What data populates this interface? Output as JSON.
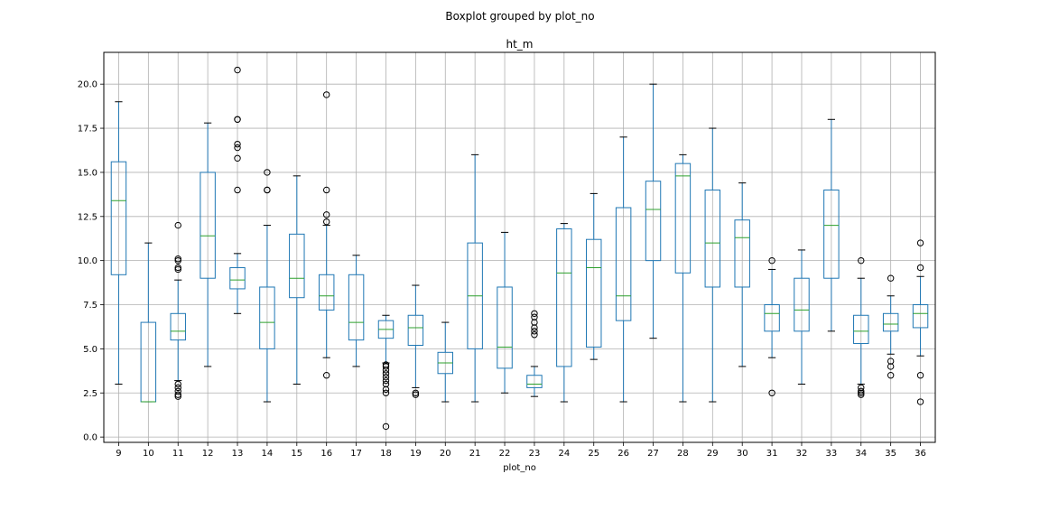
{
  "suptitle": "Boxplot grouped by plot_no",
  "chart_data": {
    "type": "boxplot",
    "title": "ht_m",
    "xlabel": "plot_no",
    "ylabel": "",
    "ylim": [
      -0.3,
      21.8
    ],
    "yticks": [
      0.0,
      2.5,
      5.0,
      7.5,
      10.0,
      12.5,
      15.0,
      17.5,
      20.0
    ],
    "ytick_labels": [
      "0.0",
      "2.5",
      "5.0",
      "7.5",
      "10.0",
      "12.5",
      "15.0",
      "17.5",
      "20.0"
    ],
    "grid": true,
    "colors": {
      "box": "#1f77b4",
      "median": "#2ca02c",
      "whisker": "#1f77b4",
      "cap": "#000000",
      "flier": "#000000",
      "grid": "#b0b0b0"
    },
    "categories": [
      "9",
      "10",
      "11",
      "12",
      "13",
      "14",
      "15",
      "16",
      "17",
      "18",
      "19",
      "20",
      "21",
      "22",
      "23",
      "24",
      "25",
      "26",
      "27",
      "28",
      "29",
      "30",
      "31",
      "32",
      "33",
      "34",
      "35",
      "36"
    ],
    "boxes": [
      {
        "q1": 9.2,
        "median": 13.4,
        "q3": 15.6,
        "whislo": 3.0,
        "whishi": 19.0,
        "fliers": []
      },
      {
        "q1": 2.0,
        "median": 2.0,
        "q3": 6.5,
        "whislo": 2.0,
        "whishi": 11.0,
        "fliers": []
      },
      {
        "q1": 5.5,
        "median": 6.0,
        "q3": 7.0,
        "whislo": 3.2,
        "whishi": 8.9,
        "fliers": [
          3.0,
          2.8,
          2.6,
          2.4,
          2.3,
          9.5,
          9.6,
          10.0,
          10.1,
          12.0
        ]
      },
      {
        "q1": 9.0,
        "median": 11.4,
        "q3": 15.0,
        "whislo": 4.0,
        "whishi": 17.8,
        "fliers": []
      },
      {
        "q1": 8.4,
        "median": 8.9,
        "q3": 9.6,
        "whislo": 7.0,
        "whishi": 10.4,
        "fliers": [
          14.0,
          15.8,
          16.4,
          16.6,
          18.0,
          18.0,
          20.8
        ]
      },
      {
        "q1": 5.0,
        "median": 6.5,
        "q3": 8.5,
        "whislo": 2.0,
        "whishi": 12.0,
        "fliers": [
          14.0,
          14.0,
          15.0
        ]
      },
      {
        "q1": 7.9,
        "median": 9.0,
        "q3": 11.5,
        "whislo": 3.0,
        "whishi": 14.8,
        "fliers": []
      },
      {
        "q1": 7.2,
        "median": 8.0,
        "q3": 9.2,
        "whislo": 4.5,
        "whishi": 12.0,
        "fliers": [
          3.5,
          12.2,
          12.6,
          14.0,
          19.4
        ]
      },
      {
        "q1": 5.5,
        "median": 6.5,
        "q3": 9.2,
        "whislo": 4.0,
        "whishi": 10.3,
        "fliers": []
      },
      {
        "q1": 5.6,
        "median": 6.1,
        "q3": 6.6,
        "whislo": 4.2,
        "whishi": 6.9,
        "fliers": [
          0.6,
          2.5,
          2.7,
          3.0,
          3.2,
          3.4,
          3.6,
          3.8,
          4.0,
          4.1
        ]
      },
      {
        "q1": 5.2,
        "median": 6.2,
        "q3": 6.9,
        "whislo": 2.8,
        "whishi": 8.6,
        "fliers": [
          2.4,
          2.5
        ]
      },
      {
        "q1": 3.6,
        "median": 4.2,
        "q3": 4.8,
        "whislo": 2.0,
        "whishi": 6.5,
        "fliers": []
      },
      {
        "q1": 5.0,
        "median": 8.0,
        "q3": 11.0,
        "whislo": 2.0,
        "whishi": 16.0,
        "fliers": []
      },
      {
        "q1": 3.9,
        "median": 5.1,
        "q3": 8.5,
        "whislo": 2.5,
        "whishi": 11.6,
        "fliers": []
      },
      {
        "q1": 2.8,
        "median": 3.0,
        "q3": 3.5,
        "whislo": 2.3,
        "whishi": 4.0,
        "fliers": [
          5.8,
          6.0,
          6.2,
          6.5,
          6.8,
          7.0
        ]
      },
      {
        "q1": 4.0,
        "median": 9.3,
        "q3": 11.8,
        "whislo": 2.0,
        "whishi": 12.1,
        "fliers": []
      },
      {
        "q1": 5.1,
        "median": 9.6,
        "q3": 11.2,
        "whislo": 4.4,
        "whishi": 13.8,
        "fliers": []
      },
      {
        "q1": 6.6,
        "median": 8.0,
        "q3": 13.0,
        "whislo": 2.0,
        "whishi": 17.0,
        "fliers": []
      },
      {
        "q1": 10.0,
        "median": 12.9,
        "q3": 14.5,
        "whislo": 5.6,
        "whishi": 20.0,
        "fliers": []
      },
      {
        "q1": 9.3,
        "median": 14.8,
        "q3": 15.5,
        "whislo": 2.0,
        "whishi": 16.0,
        "fliers": []
      },
      {
        "q1": 8.5,
        "median": 11.0,
        "q3": 14.0,
        "whislo": 2.0,
        "whishi": 17.5,
        "fliers": []
      },
      {
        "q1": 8.5,
        "median": 11.3,
        "q3": 12.3,
        "whislo": 4.0,
        "whishi": 14.4,
        "fliers": []
      },
      {
        "q1": 6.0,
        "median": 7.0,
        "q3": 7.5,
        "whislo": 4.5,
        "whishi": 9.5,
        "fliers": [
          2.5,
          10.0
        ]
      },
      {
        "q1": 6.0,
        "median": 7.2,
        "q3": 9.0,
        "whislo": 3.0,
        "whishi": 10.6,
        "fliers": []
      },
      {
        "q1": 9.0,
        "median": 12.0,
        "q3": 14.0,
        "whislo": 6.0,
        "whishi": 18.0,
        "fliers": []
      },
      {
        "q1": 5.3,
        "median": 6.0,
        "q3": 6.9,
        "whislo": 3.0,
        "whishi": 9.0,
        "fliers": [
          2.4,
          2.5,
          2.6,
          2.8,
          10.0
        ]
      },
      {
        "q1": 6.0,
        "median": 6.4,
        "q3": 7.0,
        "whislo": 4.7,
        "whishi": 8.0,
        "fliers": [
          3.5,
          4.0,
          4.3,
          9.0
        ]
      },
      {
        "q1": 6.2,
        "median": 7.0,
        "q3": 7.5,
        "whislo": 4.6,
        "whishi": 9.1,
        "fliers": [
          2.0,
          3.5,
          9.6,
          11.0
        ]
      }
    ]
  }
}
